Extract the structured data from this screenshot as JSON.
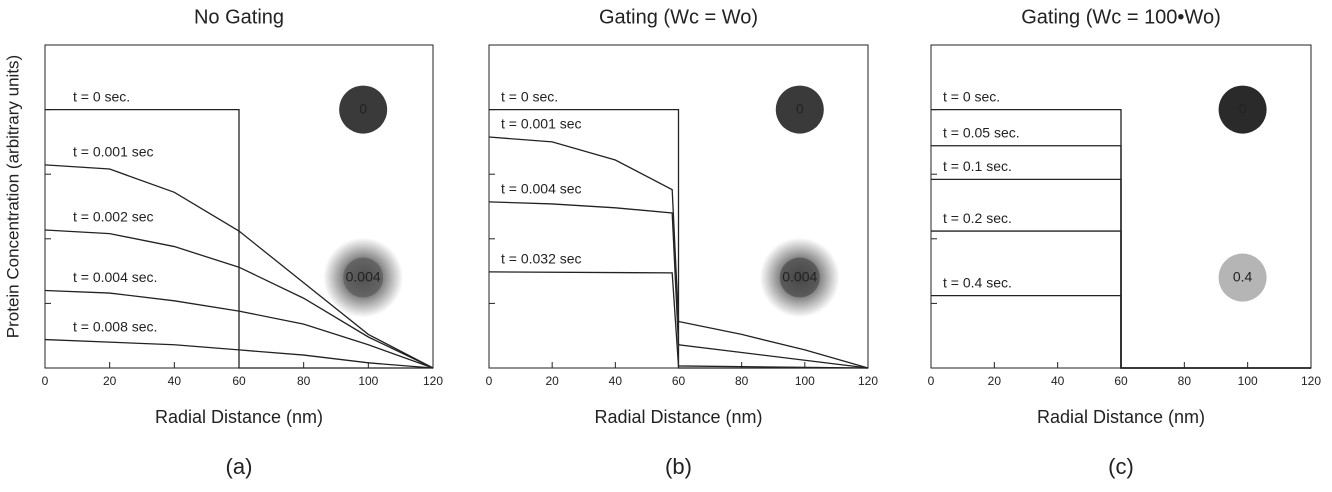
{
  "chart_data": [
    {
      "type": "line",
      "title": "No Gating",
      "caption": "(a)",
      "x_label": "Radial Distance (nm)",
      "y_label": "Protein Concentration (arbitrary units)",
      "xlim": [
        0,
        120
      ],
      "xticks": [
        0,
        20,
        40,
        60,
        80,
        100,
        120
      ],
      "ylim": [
        0,
        1.25
      ],
      "yticks": [
        0,
        0.25,
        0.5,
        0.75,
        1,
        1.25
      ],
      "series": [
        {
          "name": "t = 0 sec.",
          "color": "#222222",
          "x": [
            0,
            60,
            60,
            120
          ],
          "values": [
            1,
            1,
            0,
            0
          ]
        },
        {
          "name": "t = 0.001 sec",
          "color": "#222222",
          "x": [
            0,
            20,
            40,
            60,
            80,
            100,
            120
          ],
          "values": [
            0.786,
            0.77,
            0.68,
            0.53,
            0.33,
            0.13,
            0
          ]
        },
        {
          "name": "t = 0.002 sec",
          "color": "#222222",
          "x": [
            0,
            20,
            40,
            60,
            80,
            100,
            120
          ],
          "values": [
            0.534,
            0.52,
            0.47,
            0.39,
            0.27,
            0.12,
            0
          ]
        },
        {
          "name": "t = 0.004 sec.",
          "color": "#222222",
          "x": [
            0,
            20,
            40,
            60,
            80,
            100,
            120
          ],
          "values": [
            0.3,
            0.29,
            0.26,
            0.22,
            0.17,
            0.09,
            0
          ]
        },
        {
          "name": "t = 0.008 sec.",
          "color": "#222222",
          "x": [
            0,
            40,
            60,
            80,
            100,
            120
          ],
          "values": [
            0.11,
            0.09,
            0.07,
            0.05,
            0.02,
            0
          ]
        }
      ],
      "insets": [
        {
          "label": "0",
          "color": "#3a3a3a",
          "diffuse": false
        },
        {
          "label": "0.004",
          "color": "#555555",
          "diffuse": true
        }
      ]
    },
    {
      "type": "line",
      "title": "Gating (Wc = Wo)",
      "caption": "(b)",
      "x_label": "Radial Distance (nm)",
      "xlim": [
        0,
        120
      ],
      "xticks": [
        0,
        20,
        40,
        60,
        80,
        100,
        120
      ],
      "ylim": [
        0,
        1.25
      ],
      "yticks": [
        0,
        0.25,
        0.5,
        0.75,
        1,
        1.25
      ],
      "series": [
        {
          "name": "t = 0 sec.",
          "color": "#222222",
          "x": [
            0,
            60,
            60,
            120
          ],
          "values": [
            1,
            1,
            0,
            0
          ]
        },
        {
          "name": "t = 0.001 sec",
          "color": "#222222",
          "x": [
            0,
            20,
            40,
            58,
            60,
            80,
            100,
            120
          ],
          "values": [
            0.894,
            0.875,
            0.805,
            0.69,
            0.18,
            0.13,
            0.07,
            0
          ]
        },
        {
          "name": "t = 0.004 sec",
          "color": "#222222",
          "x": [
            0,
            20,
            40,
            58,
            60,
            80,
            100,
            120
          ],
          "values": [
            0.643,
            0.635,
            0.62,
            0.6,
            0.09,
            0.06,
            0.03,
            0
          ]
        },
        {
          "name": "t = 0.032 sec",
          "color": "#222222",
          "x": [
            0,
            58,
            60,
            120
          ],
          "values": [
            0.372,
            0.368,
            0.008,
            0
          ]
        }
      ],
      "insets": [
        {
          "label": "0",
          "color": "#3a3a3a",
          "diffuse": false
        },
        {
          "label": "0.004",
          "color": "#444444",
          "diffuse": true
        }
      ]
    },
    {
      "type": "line",
      "title": "Gating (Wc = 100•Wo)",
      "caption": "(c)",
      "x_label": "Radial Distance (nm)",
      "xlim": [
        0,
        120
      ],
      "xticks": [
        0,
        20,
        40,
        60,
        80,
        100,
        120
      ],
      "ylim": [
        0,
        1.25
      ],
      "yticks": [
        0,
        0.25,
        0.5,
        0.75,
        1,
        1.25
      ],
      "series": [
        {
          "name": "t = 0 sec.",
          "color": "#222222",
          "x": [
            0,
            60,
            60,
            120
          ],
          "values": [
            1,
            1,
            0,
            0
          ]
        },
        {
          "name": "t = 0.05 sec.",
          "color": "#222222",
          "x": [
            0,
            60,
            60,
            120
          ],
          "values": [
            0.86,
            0.86,
            0,
            0
          ]
        },
        {
          "name": "t = 0.1 sec.",
          "color": "#222222",
          "x": [
            0,
            60,
            60,
            120
          ],
          "values": [
            0.73,
            0.73,
            0,
            0
          ]
        },
        {
          "name": "t = 0.2 sec.",
          "color": "#222222",
          "x": [
            0,
            60,
            60,
            120
          ],
          "values": [
            0.53,
            0.53,
            0,
            0
          ]
        },
        {
          "name": "t = 0.4 sec.",
          "color": "#222222",
          "x": [
            0,
            60,
            60,
            120
          ],
          "values": [
            0.28,
            0.28,
            0,
            0
          ]
        }
      ],
      "insets": [
        {
          "label": "0",
          "color": "#2a2a2a",
          "diffuse": false
        },
        {
          "label": "0.4",
          "color": "#b5b5b5",
          "diffuse": false
        }
      ]
    }
  ]
}
